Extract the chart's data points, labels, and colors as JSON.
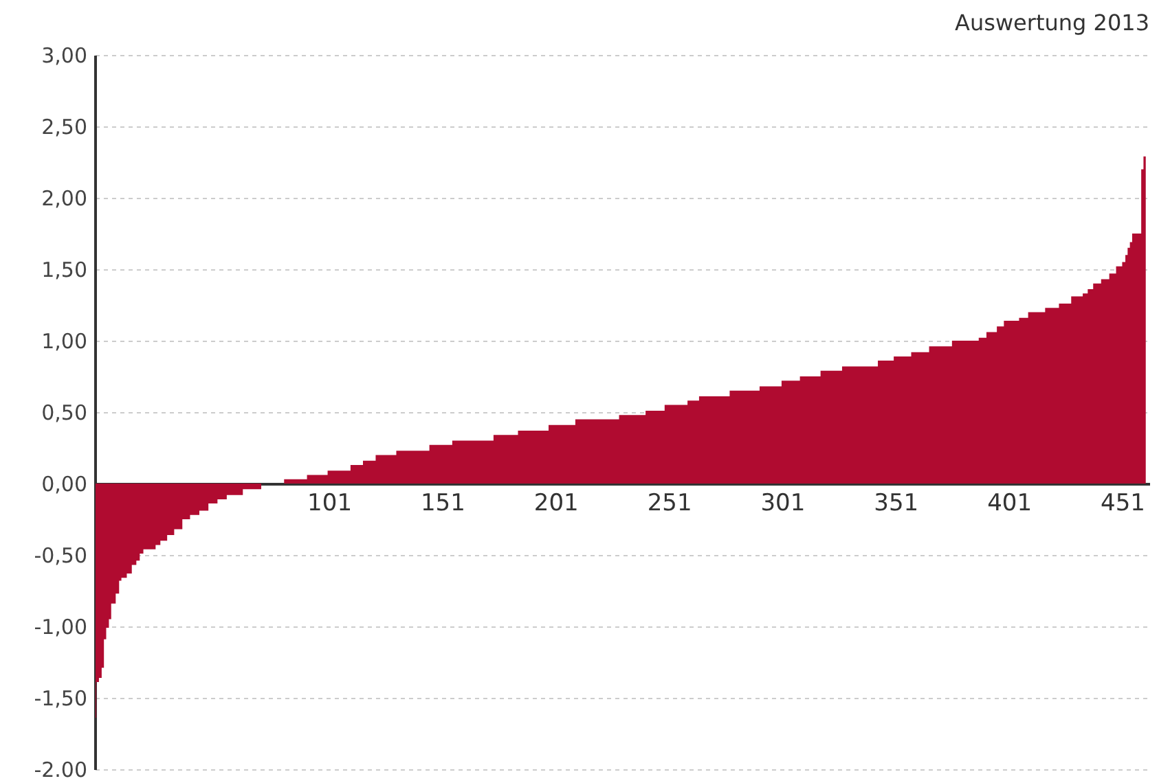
{
  "chart_data": {
    "type": "area",
    "title": "Auswertung 2013",
    "color": "#b00b30",
    "x": [
      -2,
      -1.7,
      -0.5,
      0.7,
      1.7,
      2.7,
      3.9,
      4.9,
      6.9,
      8.4,
      9.4,
      11.8,
      14.0,
      16.0,
      17.5,
      19.1,
      24.5,
      26.6,
      29.6,
      32.7,
      36.3,
      39.7,
      43.8,
      47.8,
      51.8,
      55.9,
      63.0,
      71.1,
      81.2,
      91.3,
      100.4,
      110.5,
      116.0,
      121.6,
      130.7,
      145.3,
      155.4,
      173.6,
      184.4,
      197.9,
      209.7,
      229.0,
      240.7,
      249.1,
      259.2,
      264.3,
      277.8,
      291.0,
      300.7,
      308.8,
      317.9,
      327.4,
      343.2,
      350.2,
      357.9,
      365.8,
      375.9,
      387.7,
      391.1,
      395.7,
      398.8,
      405.5,
      409.5,
      417.0,
      423.1,
      428.5,
      433.6,
      435.8,
      438.2,
      441.7,
      445.3,
      448.3,
      451.0,
      452.4,
      453.4,
      454.4,
      455.4,
      459.4,
      460.4,
      461.4
    ],
    "values": [
      -1.64,
      -1.39,
      -1.36,
      -1.29,
      -1.09,
      -1.01,
      -0.95,
      -0.84,
      -0.77,
      -0.68,
      -0.66,
      -0.63,
      -0.57,
      -0.54,
      -0.49,
      -0.46,
      -0.43,
      -0.4,
      -0.36,
      -0.32,
      -0.25,
      -0.22,
      -0.19,
      -0.14,
      -0.11,
      -0.08,
      -0.04,
      0,
      0.03,
      0.06,
      0.09,
      0.13,
      0.16,
      0.2,
      0.23,
      0.27,
      0.3,
      0.34,
      0.37,
      0.41,
      0.45,
      0.48,
      0.51,
      0.55,
      0.58,
      0.61,
      0.65,
      0.68,
      0.72,
      0.75,
      0.79,
      0.82,
      0.86,
      0.89,
      0.92,
      0.96,
      1.0,
      1.02,
      1.06,
      1.1,
      1.14,
      1.16,
      1.2,
      1.23,
      1.26,
      1.31,
      1.33,
      1.36,
      1.4,
      1.43,
      1.47,
      1.52,
      1.55,
      1.6,
      1.65,
      1.69,
      1.75,
      2.2,
      2.29,
      2.29
    ],
    "xlim": [
      -2.3,
      463
    ],
    "xticks": [
      101,
      151,
      201,
      251,
      301,
      351,
      401,
      451
    ],
    "ylim": [
      -2,
      3
    ],
    "yticks": [
      {
        "value": 3,
        "label": "3,00"
      },
      {
        "value": 2.5,
        "label": "2,50"
      },
      {
        "value": 2,
        "label": "2,00"
      },
      {
        "value": 1.5,
        "label": "1,50"
      },
      {
        "value": 1,
        "label": "1,00"
      },
      {
        "value": 0.5,
        "label": "0,50"
      },
      {
        "value": 0,
        "label": "0,00"
      },
      {
        "value": -0.5,
        "label": "-0,50"
      },
      {
        "value": -1,
        "label": "-1,00"
      },
      {
        "value": -1.5,
        "label": "-1,50"
      },
      {
        "value": -2,
        "label": "-2.00"
      }
    ],
    "grid": "y"
  }
}
